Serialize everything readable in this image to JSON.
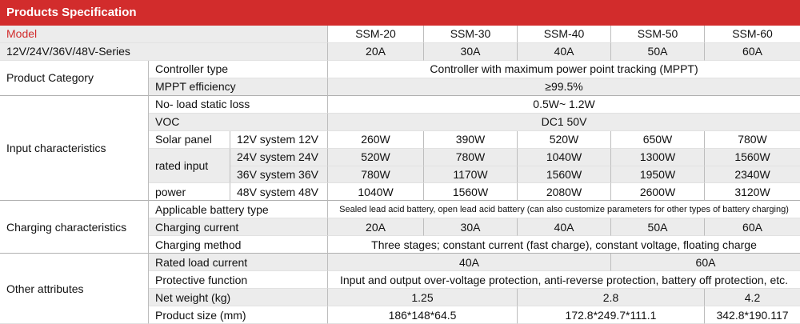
{
  "header": {
    "title": "Products Specification"
  },
  "model_row": {
    "label": "Model",
    "models": [
      "SSM-20",
      "SSM-30",
      "SSM-40",
      "SSM-50",
      "SSM-60"
    ]
  },
  "series_row": {
    "label": "12V/24V/36V/48V-Series",
    "currents": [
      "20A",
      "30A",
      "40A",
      "50A",
      "60A"
    ]
  },
  "categories": {
    "product": "Product Category",
    "input": "Input characteristics",
    "charging": "Charging characteristics",
    "other": "Other attributes"
  },
  "product": {
    "controller_type": {
      "label": "Controller type",
      "value": "Controller with maximum power point tracking (MPPT)"
    },
    "mppt_efficiency": {
      "label": "MPPT efficiency",
      "value": "≥99.5%"
    }
  },
  "input": {
    "no_load": {
      "label": "No- load static loss",
      "value": "0.5W~ 1.2W"
    },
    "voc": {
      "label": "VOC",
      "value": "DC1 50V"
    },
    "solar_label_1": "Solar panel",
    "solar_label_2": "rated input",
    "solar_label_3": "power",
    "systems": [
      {
        "label": "12V system 12V",
        "values": [
          "260W",
          "390W",
          "520W",
          "650W",
          "780W"
        ]
      },
      {
        "label": "24V system 24V",
        "values": [
          "520W",
          "780W",
          "1040W",
          "1300W",
          "1560W"
        ]
      },
      {
        "label": "36V system 36V",
        "values": [
          "780W",
          "1170W",
          "1560W",
          "1950W",
          "2340W"
        ]
      },
      {
        "label": "48V system 48V",
        "values": [
          "1040W",
          "1560W",
          "2080W",
          "2600W",
          "3120W"
        ]
      }
    ]
  },
  "charging": {
    "battery_type": {
      "label": "Applicable battery type",
      "value": "Sealed lead acid battery, open lead acid battery (can also customize parameters for other types of battery charging)"
    },
    "current": {
      "label": "Charging current",
      "values": [
        "20A",
        "30A",
        "40A",
        "50A",
        "60A"
      ]
    },
    "method": {
      "label": "Charging method",
      "value": "Three stages; constant current (fast charge), constant voltage, floating charge"
    }
  },
  "other": {
    "load_current": {
      "label": "Rated load current",
      "values": [
        "40A",
        "60A"
      ]
    },
    "protective": {
      "label": "Protective function",
      "value": "Input and output over-voltage protection, anti-reverse protection, battery off protection, etc."
    },
    "weight": {
      "label": "Net weight (kg)",
      "values": [
        "1.25",
        "2.8",
        "4.2"
      ]
    },
    "size": {
      "label": "Product size (mm)",
      "values": [
        "186*148*64.5",
        "172.8*249.7*111.1",
        "342.8*190.117"
      ]
    }
  }
}
